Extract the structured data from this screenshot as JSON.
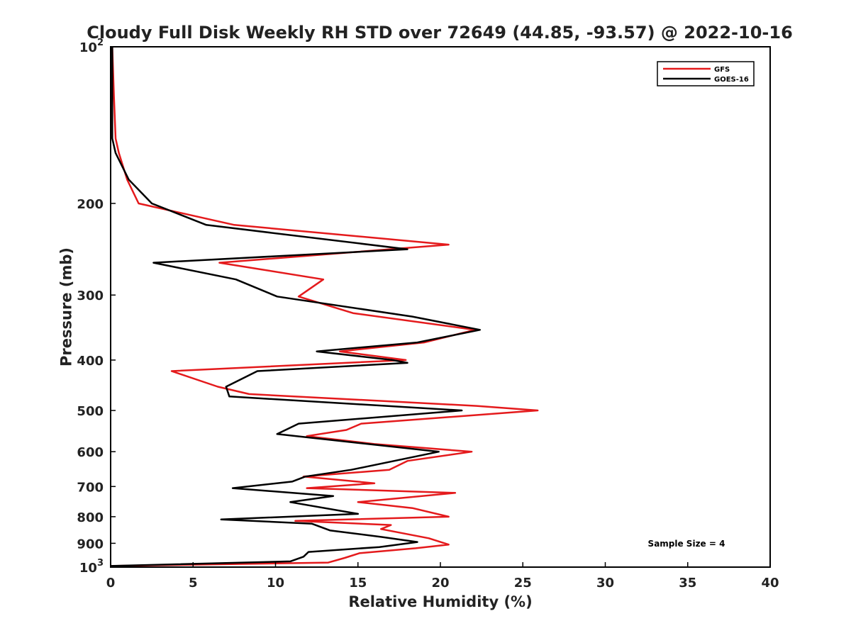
{
  "chart_data": {
    "type": "line",
    "title": "Cloudy Full Disk Weekly RH STD over 72649 (44.85, -93.57) @ 2022-10-16",
    "xlabel": "Relative Humidity (%)",
    "ylabel": "Pressure (mb)",
    "xlim": [
      0,
      40
    ],
    "ylim": [
      1000,
      100
    ],
    "yscale": "log",
    "x_ticks": [
      "0",
      "5",
      "10",
      "15",
      "20",
      "25",
      "30",
      "35",
      "40"
    ],
    "y_ticks": [
      {
        "value": 100,
        "base": "10",
        "exp": "2"
      },
      {
        "value": 200,
        "label": "200"
      },
      {
        "value": 300,
        "label": "300"
      },
      {
        "value": 400,
        "label": "400"
      },
      {
        "value": 500,
        "label": "500"
      },
      {
        "value": 600,
        "label": "600"
      },
      {
        "value": 700,
        "label": "700"
      },
      {
        "value": 800,
        "label": "800"
      },
      {
        "value": 900,
        "label": "900"
      },
      {
        "value": 1000,
        "base": "10",
        "exp": "3"
      }
    ],
    "legend_position": "top-right",
    "annotation": "Sample Size = 4",
    "series": [
      {
        "name": "GFS",
        "color": "#e41a1c",
        "points": [
          [
            0.1,
            100
          ],
          [
            0.2,
            125
          ],
          [
            0.3,
            150
          ],
          [
            0.5,
            160
          ],
          [
            1.0,
            180
          ],
          [
            1.7,
            200
          ],
          [
            7.5,
            220
          ],
          [
            20.5,
            240
          ],
          [
            6.6,
            260
          ],
          [
            12.9,
            280
          ],
          [
            11.4,
            302
          ],
          [
            14.7,
            325
          ],
          [
            22.1,
            350
          ],
          [
            19.0,
            370
          ],
          [
            13.9,
            385
          ],
          [
            17.9,
            400
          ],
          [
            3.7,
            420
          ],
          [
            6.5,
            450
          ],
          [
            8.4,
            465
          ],
          [
            22.2,
            490
          ],
          [
            25.9,
            500
          ],
          [
            15.2,
            530
          ],
          [
            14.3,
            545
          ],
          [
            11.9,
            560
          ],
          [
            16.0,
            580
          ],
          [
            21.9,
            600
          ],
          [
            18.0,
            625
          ],
          [
            16.9,
            650
          ],
          [
            11.7,
            670
          ],
          [
            16.0,
            690
          ],
          [
            11.9,
            705
          ],
          [
            20.9,
            720
          ],
          [
            15.0,
            750
          ],
          [
            18.3,
            770
          ],
          [
            20.5,
            800
          ],
          [
            11.2,
            815
          ],
          [
            17.0,
            830
          ],
          [
            16.4,
            845
          ],
          [
            19.3,
            880
          ],
          [
            20.5,
            905
          ],
          [
            18.5,
            920
          ],
          [
            15.1,
            940
          ],
          [
            14.2,
            960
          ],
          [
            13.2,
            980
          ],
          [
            0,
            995
          ]
        ]
      },
      {
        "name": "GOES-16",
        "color": "#000000",
        "points": [
          [
            0.1,
            100
          ],
          [
            0.1,
            125
          ],
          [
            0.1,
            150
          ],
          [
            0.3,
            160
          ],
          [
            1.1,
            180
          ],
          [
            2.5,
            200
          ],
          [
            5.8,
            220
          ],
          [
            18.0,
            245
          ],
          [
            2.6,
            260
          ],
          [
            7.6,
            280
          ],
          [
            10.1,
            302
          ],
          [
            18.3,
            330
          ],
          [
            22.4,
            350
          ],
          [
            18.6,
            370
          ],
          [
            12.5,
            385
          ],
          [
            17.1,
            400
          ],
          [
            18.0,
            405
          ],
          [
            8.9,
            420
          ],
          [
            7.0,
            450
          ],
          [
            7.2,
            470
          ],
          [
            21.3,
            500
          ],
          [
            11.4,
            530
          ],
          [
            10.1,
            555
          ],
          [
            19.9,
            600
          ],
          [
            14.6,
            650
          ],
          [
            11.8,
            670
          ],
          [
            11.0,
            685
          ],
          [
            7.4,
            705
          ],
          [
            13.5,
            730
          ],
          [
            10.9,
            750
          ],
          [
            15.0,
            790
          ],
          [
            6.7,
            810
          ],
          [
            12.2,
            825
          ],
          [
            13.3,
            850
          ],
          [
            16.4,
            875
          ],
          [
            18.6,
            895
          ],
          [
            16.3,
            915
          ],
          [
            12.0,
            935
          ],
          [
            11.7,
            955
          ],
          [
            10.9,
            975
          ],
          [
            0,
            995
          ]
        ]
      }
    ]
  }
}
